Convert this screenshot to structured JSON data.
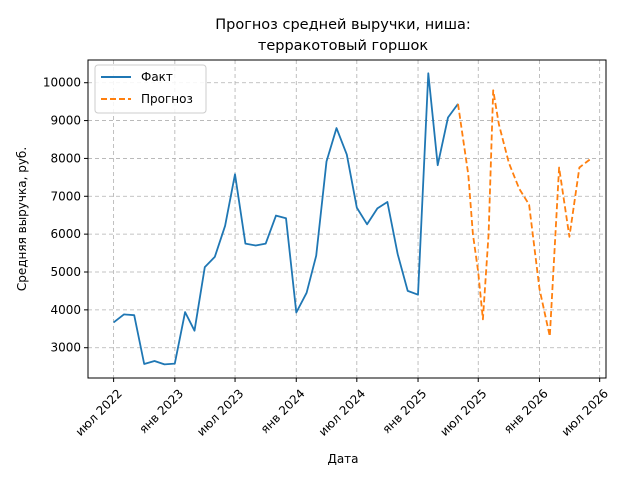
{
  "chart_data": {
    "type": "line",
    "title": [
      "Прогноз средней выручки, ниша:",
      "терракотовый горшок"
    ],
    "xlabel": "Дата",
    "ylabel": "Средняя выручка, руб.",
    "x_ticks": [
      "июл 2022",
      "янв 2023",
      "июл 2023",
      "янв 2024",
      "июл 2024",
      "янв 2025",
      "июл 2025",
      "янв 2026",
      "июл 2026"
    ],
    "y_ticks": [
      3000,
      4000,
      5000,
      6000,
      7000,
      8000,
      9000,
      10000
    ],
    "ylim": [
      2200,
      10600
    ],
    "xlim": [
      "2022-04-15",
      "2026-07-20"
    ],
    "grid": true,
    "legend_position": "top-left",
    "series": [
      {
        "name": "Факт",
        "color": "#1f77b4",
        "style": "solid",
        "points": [
          [
            "2022-07-01",
            3670
          ],
          [
            "2022-08-01",
            3880
          ],
          [
            "2022-09-01",
            3860
          ],
          [
            "2022-10-01",
            2570
          ],
          [
            "2022-11-01",
            2650
          ],
          [
            "2022-12-01",
            2560
          ],
          [
            "2023-01-01",
            2580
          ],
          [
            "2023-02-01",
            3940
          ],
          [
            "2023-03-01",
            3450
          ],
          [
            "2023-04-01",
            5130
          ],
          [
            "2023-05-01",
            5400
          ],
          [
            "2023-06-01",
            6220
          ],
          [
            "2023-07-01",
            7580
          ],
          [
            "2023-08-01",
            5750
          ],
          [
            "2023-09-01",
            5700
          ],
          [
            "2023-10-01",
            5750
          ],
          [
            "2023-11-01",
            6490
          ],
          [
            "2023-12-01",
            6420
          ],
          [
            "2024-01-01",
            3930
          ],
          [
            "2024-02-01",
            4450
          ],
          [
            "2024-03-01",
            5430
          ],
          [
            "2024-04-01",
            7920
          ],
          [
            "2024-05-01",
            8800
          ],
          [
            "2024-06-01",
            8100
          ],
          [
            "2024-07-01",
            6700
          ],
          [
            "2024-08-01",
            6260
          ],
          [
            "2024-09-01",
            6680
          ],
          [
            "2024-10-01",
            6850
          ],
          [
            "2024-11-01",
            5470
          ],
          [
            "2024-12-01",
            4500
          ],
          [
            "2025-01-01",
            4400
          ],
          [
            "2025-02-01",
            10250
          ],
          [
            "2025-03-01",
            7820
          ],
          [
            "2025-04-01",
            9080
          ],
          [
            "2025-05-01",
            9440
          ]
        ]
      },
      {
        "name": "Прогноз",
        "color": "#ff7f0e",
        "style": "dashed",
        "points": [
          [
            "2025-05-01",
            9440
          ],
          [
            "2025-06-01",
            7570
          ],
          [
            "2025-06-15",
            6000
          ],
          [
            "2025-07-01",
            5000
          ],
          [
            "2025-07-15",
            3750
          ],
          [
            "2025-08-01",
            6000
          ],
          [
            "2025-08-15",
            9800
          ],
          [
            "2025-09-01",
            8900
          ],
          [
            "2025-10-01",
            7880
          ],
          [
            "2025-11-01",
            7200
          ],
          [
            "2025-12-01",
            6780
          ],
          [
            "2026-01-01",
            4550
          ],
          [
            "2026-02-01",
            3300
          ],
          [
            "2026-03-01",
            7760
          ],
          [
            "2026-04-01",
            5930
          ],
          [
            "2026-05-01",
            7760
          ],
          [
            "2026-06-01",
            7970
          ]
        ]
      }
    ]
  }
}
